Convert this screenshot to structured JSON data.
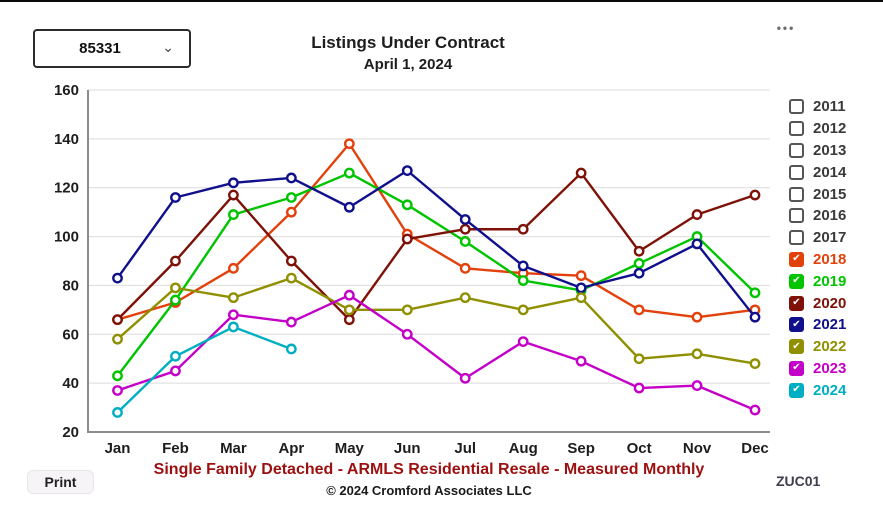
{
  "controls": {
    "zip_value": "85331",
    "dropdown_chevron": "⌄",
    "menu_icon": "•••",
    "print_label": "Print",
    "chart_code": "ZUC01"
  },
  "header": {
    "title": "Listings Under Contract",
    "subtitle": "April 1, 2024"
  },
  "footer": {
    "line1": "Single Family Detached - ARMLS Residential Resale - Measured Monthly",
    "line2": "© 2024 Cromford Associates LLC"
  },
  "legend": {
    "position": "right",
    "check_glyph": "✔",
    "items": [
      {
        "year": "2011",
        "checked": false,
        "color": "#3a3a3a"
      },
      {
        "year": "2012",
        "checked": false,
        "color": "#3a3a3a"
      },
      {
        "year": "2013",
        "checked": false,
        "color": "#3a3a3a"
      },
      {
        "year": "2014",
        "checked": false,
        "color": "#3a3a3a"
      },
      {
        "year": "2015",
        "checked": false,
        "color": "#3a3a3a"
      },
      {
        "year": "2016",
        "checked": false,
        "color": "#3a3a3a"
      },
      {
        "year": "2017",
        "checked": false,
        "color": "#3a3a3a"
      },
      {
        "year": "2018",
        "checked": true,
        "color": "#E2410B"
      },
      {
        "year": "2019",
        "checked": true,
        "color": "#00C400"
      },
      {
        "year": "2020",
        "checked": true,
        "color": "#7E1208"
      },
      {
        "year": "2021",
        "checked": true,
        "color": "#10108C"
      },
      {
        "year": "2022",
        "checked": true,
        "color": "#8F8F00"
      },
      {
        "year": "2023",
        "checked": true,
        "color": "#C400C8"
      },
      {
        "year": "2024",
        "checked": true,
        "color": "#00AEC3"
      }
    ]
  },
  "chart_data": {
    "type": "line",
    "title": "Listings Under Contract",
    "subtitle": "April 1, 2024",
    "xlabel": "",
    "ylabel": "",
    "categories": [
      "Jan",
      "Feb",
      "Mar",
      "Apr",
      "May",
      "Jun",
      "Jul",
      "Aug",
      "Sep",
      "Oct",
      "Nov",
      "Dec"
    ],
    "ylim": [
      20,
      160
    ],
    "ytick_step": 20,
    "grid": true,
    "legend_position": "right",
    "marker": "open-circle",
    "series": [
      {
        "name": "2018",
        "color": "#E2410B",
        "values": [
          66,
          73,
          87,
          110,
          138,
          101,
          87,
          85,
          84,
          70,
          67,
          70
        ]
      },
      {
        "name": "2019",
        "color": "#00C400",
        "values": [
          43,
          74,
          109,
          116,
          126,
          113,
          98,
          82,
          78,
          89,
          100,
          77
        ]
      },
      {
        "name": "2020",
        "color": "#7E1208",
        "values": [
          66,
          90,
          117,
          90,
          66,
          99,
          103,
          103,
          126,
          94,
          109,
          117
        ]
      },
      {
        "name": "2021",
        "color": "#10108C",
        "values": [
          83,
          116,
          122,
          124,
          112,
          127,
          107,
          88,
          79,
          85,
          97,
          67
        ]
      },
      {
        "name": "2022",
        "color": "#8F8F00",
        "values": [
          58,
          79,
          75,
          83,
          70,
          70,
          75,
          70,
          75,
          50,
          52,
          48
        ]
      },
      {
        "name": "2023",
        "color": "#C400C8",
        "values": [
          37,
          45,
          68,
          65,
          76,
          60,
          42,
          57,
          49,
          38,
          39,
          29
        ]
      },
      {
        "name": "2024",
        "color": "#00AEC3",
        "values": [
          28,
          51,
          63,
          54,
          null,
          null,
          null,
          null,
          null,
          null,
          null,
          null
        ]
      }
    ]
  }
}
